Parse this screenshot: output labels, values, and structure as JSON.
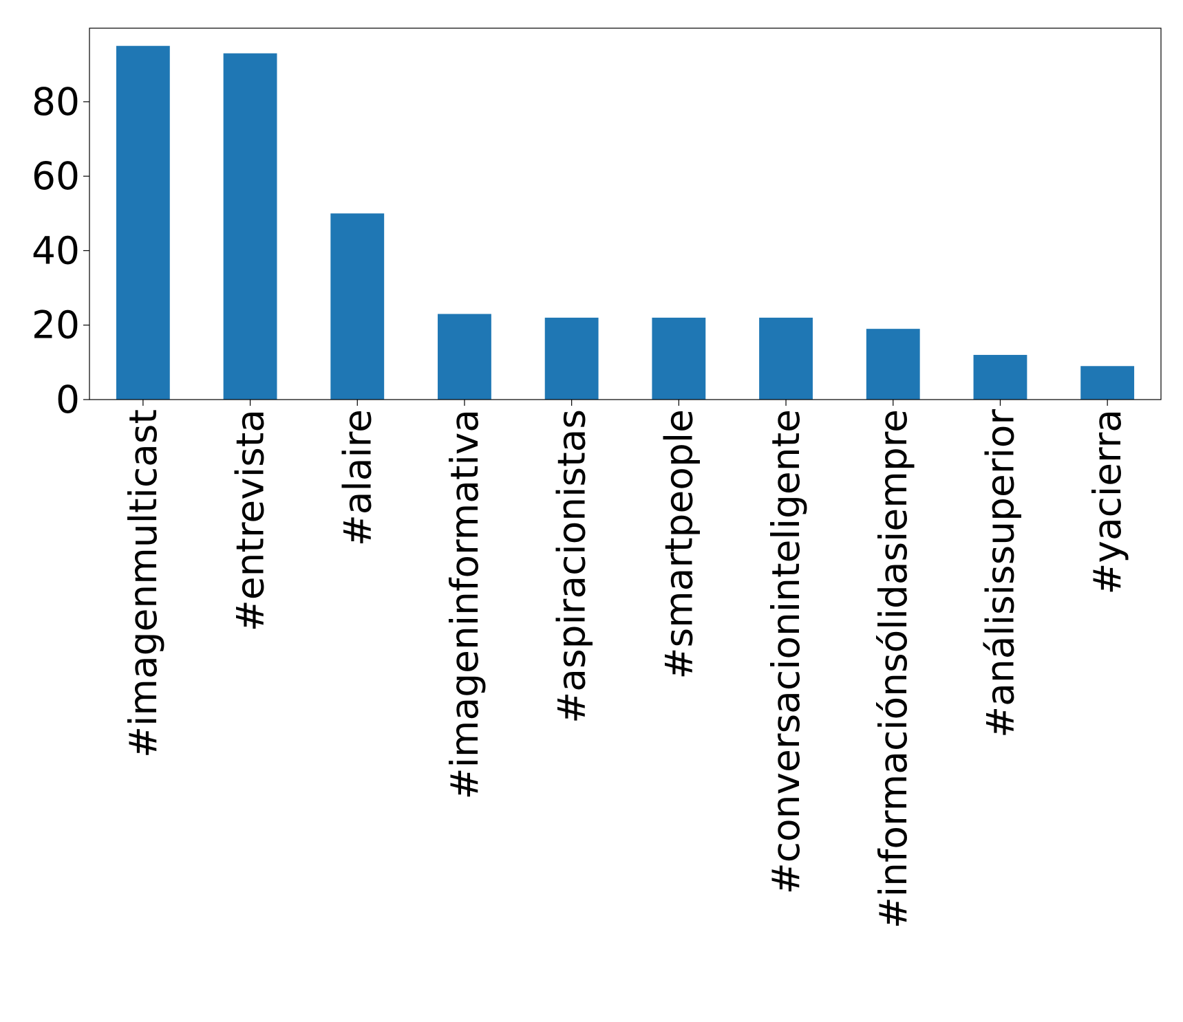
{
  "chart_data": {
    "type": "bar",
    "categories": [
      "#imagenmulticast",
      "#entrevista",
      "#alaire",
      "#imageninformativa",
      "#aspiracionistas",
      "#smartpeople",
      "#conversacioninteligente",
      "#informaciónsólidasiempre",
      "#análisissuperior",
      "#yacierra"
    ],
    "values": [
      95,
      93,
      50,
      23,
      22,
      22,
      22,
      19,
      12,
      9
    ],
    "color": "#1f77b4",
    "ylim": [
      0,
      99.75
    ],
    "yticks": [
      0,
      20,
      40,
      60,
      80
    ],
    "grid": false
  }
}
